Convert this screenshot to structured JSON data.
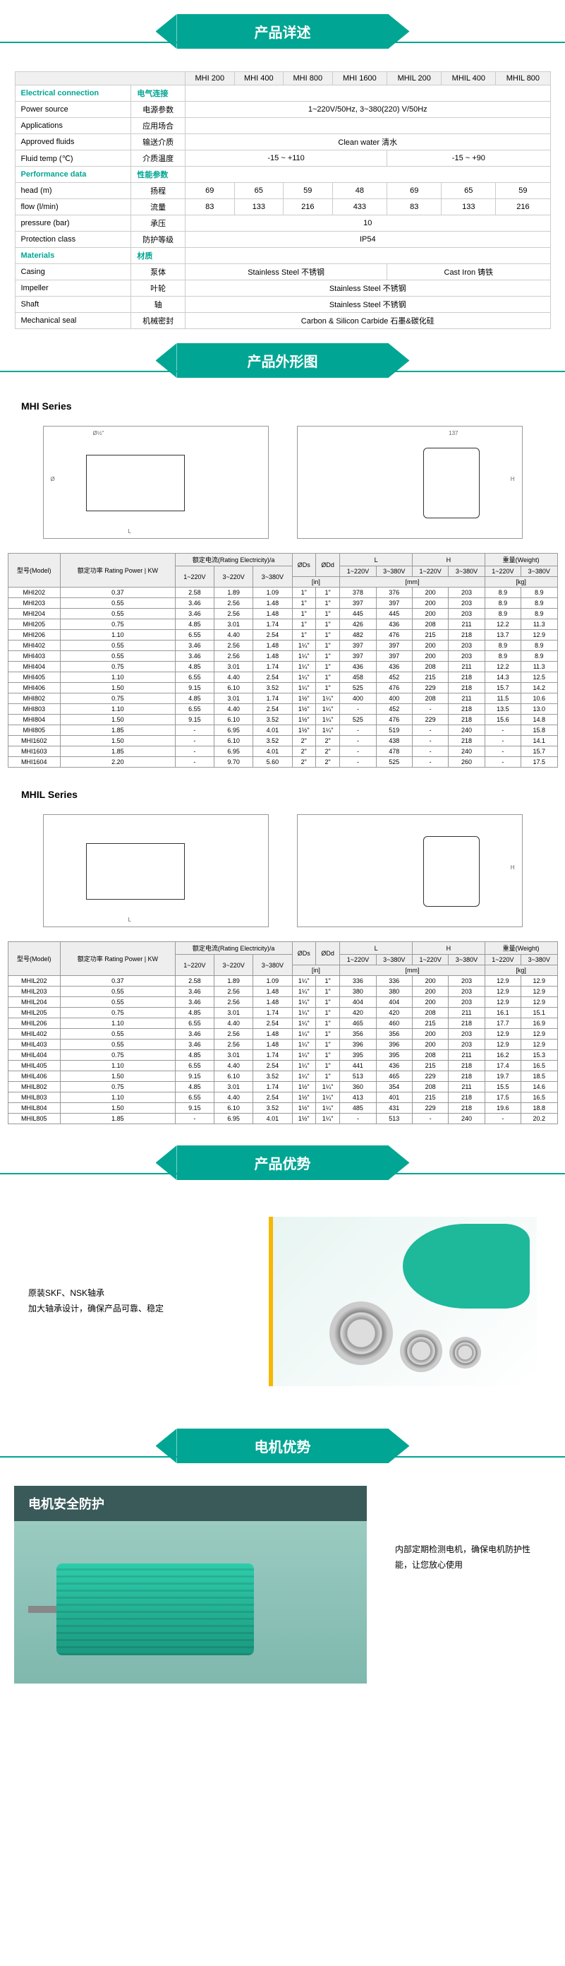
{
  "sections": {
    "details": "产品详述",
    "outline": "产品外形图",
    "advantage": "产品优势",
    "motor": "电机优势"
  },
  "spec": {
    "headers": [
      "",
      "MHI 200",
      "MHI 400",
      "MHI 800",
      "MHI 1600",
      "MHIL 200",
      "MHIL 400",
      "MHIL 800"
    ],
    "groups": {
      "electrical": {
        "en": "Electrical connection",
        "cn": "电气连接"
      },
      "performance": {
        "en": "Performance data",
        "cn": "性能参数"
      },
      "materials": {
        "en": "Materials",
        "cn": "材质"
      }
    },
    "rows": {
      "power": {
        "en": "Power source",
        "cn": "电源参数",
        "val": "1~220V/50Hz, 3~380(220) V/50Hz"
      },
      "apps": {
        "en": "Applications",
        "cn": "应用场合",
        "val": ""
      },
      "fluids": {
        "en": "Approved fluids",
        "cn": "输送介质",
        "val": "Clean water 清水"
      },
      "temp": {
        "en": "Fluid temp (℃)",
        "cn": "介质温度",
        "v1": "-15 ~ +110",
        "v2": "-15 ~ +90"
      },
      "head": {
        "en": "head (m)",
        "cn": "扬程",
        "vals": [
          "69",
          "65",
          "59",
          "48",
          "69",
          "65",
          "59"
        ]
      },
      "flow": {
        "en": "flow (l/min)",
        "cn": "流量",
        "vals": [
          "83",
          "133",
          "216",
          "433",
          "83",
          "133",
          "216"
        ]
      },
      "pressure": {
        "en": "pressure (bar)",
        "cn": "承压",
        "val": "10"
      },
      "protection": {
        "en": "Protection class",
        "cn": "防护等级",
        "val": "IP54"
      },
      "casing": {
        "en": "Casing",
        "cn": "泵体",
        "v1": "Stainless Steel 不锈钢",
        "v2": "Cast Iron 铸铁"
      },
      "impeller": {
        "en": "Impeller",
        "cn": "叶轮",
        "val": "Stainless Steel 不锈钢"
      },
      "shaft": {
        "en": "Shaft",
        "cn": "轴",
        "val": "Stainless Steel 不锈钢"
      },
      "seal": {
        "en": "Mechanical seal",
        "cn": "机械密封",
        "val": "Carbon & Silicon Carbide 石墨&碳化硅"
      }
    }
  },
  "mhi": {
    "title": "MHI Series",
    "headers": {
      "model": "型号(Model)",
      "power": "额定功率 Rating Power | KW",
      "current": "额定电流(Rating Electricity)/a",
      "c1": "1~220V",
      "c2": "3~220V",
      "c3": "3~380V",
      "ods": "ØDs",
      "odd": "ØDd",
      "L": "L",
      "H": "H",
      "weight": "重量(Weight)",
      "unit": "[in]",
      "kg": "[kg]"
    },
    "rows": [
      {
        "m": "MHI202",
        "p": "0.37",
        "a": [
          "2.58",
          "1.89",
          "1.09"
        ],
        "dd": "1\"",
        "ds": "1\"",
        "l": [
          "378",
          "376"
        ],
        "h": [
          "200",
          "203"
        ],
        "w": [
          "8.9",
          "8.9"
        ]
      },
      {
        "m": "MHI203",
        "p": "0.55",
        "a": [
          "3.46",
          "2.56",
          "1.48"
        ],
        "dd": "1\"",
        "ds": "1\"",
        "l": [
          "397",
          "397"
        ],
        "h": [
          "200",
          "203"
        ],
        "w": [
          "8.9",
          "8.9"
        ]
      },
      {
        "m": "MHI204",
        "p": "0.55",
        "a": [
          "3.46",
          "2.56",
          "1.48"
        ],
        "dd": "1\"",
        "ds": "1\"",
        "l": [
          "445",
          "445"
        ],
        "h": [
          "200",
          "203"
        ],
        "w": [
          "8.9",
          "8.9"
        ]
      },
      {
        "m": "MHI205",
        "p": "0.75",
        "a": [
          "4.85",
          "3.01",
          "1.74"
        ],
        "dd": "1\"",
        "ds": "1\"",
        "l": [
          "426",
          "436"
        ],
        "h": [
          "208",
          "211"
        ],
        "w": [
          "12.2",
          "11.3"
        ]
      },
      {
        "m": "MHI206",
        "p": "1.10",
        "a": [
          "6.55",
          "4.40",
          "2.54"
        ],
        "dd": "1\"",
        "ds": "1\"",
        "l": [
          "482",
          "476"
        ],
        "h": [
          "215",
          "218"
        ],
        "w": [
          "13.7",
          "12.9"
        ]
      },
      {
        "m": "MHI402",
        "p": "0.55",
        "a": [
          "3.46",
          "2.56",
          "1.48"
        ],
        "dd": "1¼\"",
        "ds": "1\"",
        "l": [
          "397",
          "397"
        ],
        "h": [
          "200",
          "203"
        ],
        "w": [
          "8.9",
          "8.9"
        ]
      },
      {
        "m": "MHI403",
        "p": "0.55",
        "a": [
          "3.46",
          "2.56",
          "1.48"
        ],
        "dd": "1¼\"",
        "ds": "1\"",
        "l": [
          "397",
          "397"
        ],
        "h": [
          "200",
          "203"
        ],
        "w": [
          "8.9",
          "8.9"
        ]
      },
      {
        "m": "MHI404",
        "p": "0.75",
        "a": [
          "4.85",
          "3.01",
          "1.74"
        ],
        "dd": "1¼\"",
        "ds": "1\"",
        "l": [
          "436",
          "436"
        ],
        "h": [
          "208",
          "211"
        ],
        "w": [
          "12.2",
          "11.3"
        ]
      },
      {
        "m": "MHI405",
        "p": "1.10",
        "a": [
          "6.55",
          "4.40",
          "2.54"
        ],
        "dd": "1¼\"",
        "ds": "1\"",
        "l": [
          "458",
          "452"
        ],
        "h": [
          "215",
          "218"
        ],
        "w": [
          "14.3",
          "12.5"
        ]
      },
      {
        "m": "MHI406",
        "p": "1.50",
        "a": [
          "9.15",
          "6.10",
          "3.52"
        ],
        "dd": "1¼\"",
        "ds": "1\"",
        "l": [
          "525",
          "476"
        ],
        "h": [
          "229",
          "218"
        ],
        "w": [
          "15.7",
          "14.2"
        ]
      },
      {
        "m": "MHI802",
        "p": "0.75",
        "a": [
          "4.85",
          "3.01",
          "1.74"
        ],
        "dd": "1½\"",
        "ds": "1¼\"",
        "l": [
          "400",
          "400"
        ],
        "h": [
          "208",
          "211"
        ],
        "w": [
          "11.5",
          "10.6"
        ]
      },
      {
        "m": "MHI803",
        "p": "1.10",
        "a": [
          "6.55",
          "4.40",
          "2.54"
        ],
        "dd": "1½\"",
        "ds": "1¼\"",
        "l": [
          "",
          "452"
        ],
        "h": [
          "",
          "218"
        ],
        "w": [
          "13.5",
          "13.0"
        ]
      },
      {
        "m": "MHI804",
        "p": "1.50",
        "a": [
          "9.15",
          "6.10",
          "3.52"
        ],
        "dd": "1½\"",
        "ds": "1¼\"",
        "l": [
          "525",
          "476"
        ],
        "h": [
          "229",
          "218"
        ],
        "w": [
          "15.6",
          "14.8"
        ]
      },
      {
        "m": "MHI805",
        "p": "1.85",
        "a": [
          "",
          "6.95",
          "4.01"
        ],
        "dd": "1½\"",
        "ds": "1¼\"",
        "l": [
          "",
          "519"
        ],
        "h": [
          "",
          "240"
        ],
        "w": [
          "",
          "15.8"
        ]
      },
      {
        "m": "MHI1602",
        "p": "1.50",
        "a": [
          "",
          "6.10",
          "3.52"
        ],
        "dd": "2\"",
        "ds": "2\"",
        "l": [
          "",
          "438"
        ],
        "h": [
          "",
          "218"
        ],
        "w": [
          "",
          "14.1"
        ]
      },
      {
        "m": "MHI1603",
        "p": "1.85",
        "a": [
          "",
          "6.95",
          "4.01"
        ],
        "dd": "2\"",
        "ds": "2\"",
        "l": [
          "",
          "478"
        ],
        "h": [
          "",
          "240"
        ],
        "w": [
          "",
          "15.7"
        ]
      },
      {
        "m": "MHI1604",
        "p": "2.20",
        "a": [
          "",
          "9.70",
          "5.60"
        ],
        "dd": "2\"",
        "ds": "2\"",
        "l": [
          "",
          "525"
        ],
        "h": [
          "",
          "260"
        ],
        "w": [
          "",
          "17.5"
        ]
      }
    ]
  },
  "mhil": {
    "title": "MHIL Series",
    "rows": [
      {
        "m": "MHIL202",
        "p": "0.37",
        "a": [
          "2.58",
          "1.89",
          "1.09"
        ],
        "ds": "1\"",
        "l": [
          "336",
          "336"
        ],
        "h": [
          "200",
          "203"
        ],
        "w": [
          "12.9",
          "12.9"
        ]
      },
      {
        "m": "MHIL203",
        "p": "0.55",
        "a": [
          "3.46",
          "2.56",
          "1.48"
        ],
        "ds": "1\"",
        "l": [
          "380",
          "380"
        ],
        "h": [
          "200",
          "203"
        ],
        "w": [
          "12.9",
          "12.9"
        ]
      },
      {
        "m": "MHIL204",
        "p": "0.55",
        "a": [
          "3.46",
          "2.56",
          "1.48"
        ],
        "ds": "1\"",
        "l": [
          "404",
          "404"
        ],
        "h": [
          "200",
          "203"
        ],
        "w": [
          "12.9",
          "12.9"
        ]
      },
      {
        "m": "MHIL205",
        "p": "0.75",
        "a": [
          "4.85",
          "3.01",
          "1.74"
        ],
        "ds": "1\"",
        "l": [
          "420",
          "420"
        ],
        "h": [
          "208",
          "211"
        ],
        "w": [
          "16.1",
          "15.1"
        ]
      },
      {
        "m": "MHIL206",
        "p": "1.10",
        "a": [
          "6.55",
          "4.40",
          "2.54"
        ],
        "ds": "1\"",
        "l": [
          "465",
          "460"
        ],
        "h": [
          "215",
          "218"
        ],
        "w": [
          "17.7",
          "16.9"
        ]
      },
      {
        "m": "MHIL402",
        "p": "0.55",
        "a": [
          "3.46",
          "2.56",
          "1.48"
        ],
        "ds": "1\"",
        "l": [
          "356",
          "356"
        ],
        "h": [
          "200",
          "203"
        ],
        "w": [
          "12.9",
          "12.9"
        ]
      },
      {
        "m": "MHIL403",
        "p": "0.55",
        "a": [
          "3.46",
          "2.56",
          "1.48"
        ],
        "ds": "1\"",
        "l": [
          "396",
          "396"
        ],
        "h": [
          "200",
          "203"
        ],
        "w": [
          "12.9",
          "12.9"
        ]
      },
      {
        "m": "MHIL404",
        "p": "0.75",
        "a": [
          "4.85",
          "3.01",
          "1.74"
        ],
        "ds": "1\"",
        "l": [
          "395",
          "395"
        ],
        "h": [
          "208",
          "211"
        ],
        "w": [
          "16.2",
          "15.3"
        ]
      },
      {
        "m": "MHIL405",
        "p": "1.10",
        "a": [
          "6.55",
          "4.40",
          "2.54"
        ],
        "ds": "1\"",
        "l": [
          "441",
          "436"
        ],
        "h": [
          "215",
          "218"
        ],
        "w": [
          "17.4",
          "16.5"
        ]
      },
      {
        "m": "MHIL406",
        "p": "1.50",
        "a": [
          "9.15",
          "6.10",
          "3.52"
        ],
        "ds": "1\"",
        "l": [
          "513",
          "465"
        ],
        "h": [
          "229",
          "218"
        ],
        "w": [
          "19.7",
          "18.5"
        ]
      },
      {
        "m": "MHIL802",
        "p": "0.75",
        "a": [
          "4.85",
          "3.01",
          "1.74"
        ],
        "ss": "1½\"",
        "ds": "1¼\"",
        "l": [
          "360",
          "354"
        ],
        "h": [
          "208",
          "211"
        ],
        "w": [
          "15.5",
          "14.6"
        ]
      },
      {
        "m": "MHIL803",
        "p": "1.10",
        "a": [
          "6.55",
          "4.40",
          "2.54"
        ],
        "ss": "1½\"",
        "ds": "1¼\"",
        "l": [
          "413",
          "401"
        ],
        "h": [
          "215",
          "218"
        ],
        "w": [
          "17.5",
          "16.5"
        ]
      },
      {
        "m": "MHIL804",
        "p": "1.50",
        "a": [
          "9.15",
          "6.10",
          "3.52"
        ],
        "ss": "1½\"",
        "ds": "1¼\"",
        "l": [
          "485",
          "431"
        ],
        "h": [
          "229",
          "218"
        ],
        "w": [
          "19.6",
          "18.8"
        ]
      },
      {
        "m": "MHIL805",
        "p": "1.85",
        "a": [
          "",
          "6.95",
          "4.01"
        ],
        "ss": "1½\"",
        "ds": "1¼\"",
        "l": [
          "",
          "513"
        ],
        "h": [
          "",
          "240"
        ],
        "w": [
          "",
          "20.2"
        ]
      }
    ]
  },
  "advantage": {
    "line1": "原装SKF、NSK轴承",
    "line2": "加大轴承设计，确保产品可靠、稳定"
  },
  "motor": {
    "header": "电机安全防护",
    "text": "内部定期检测电机，确保电机防护性能，让您放心使用"
  }
}
